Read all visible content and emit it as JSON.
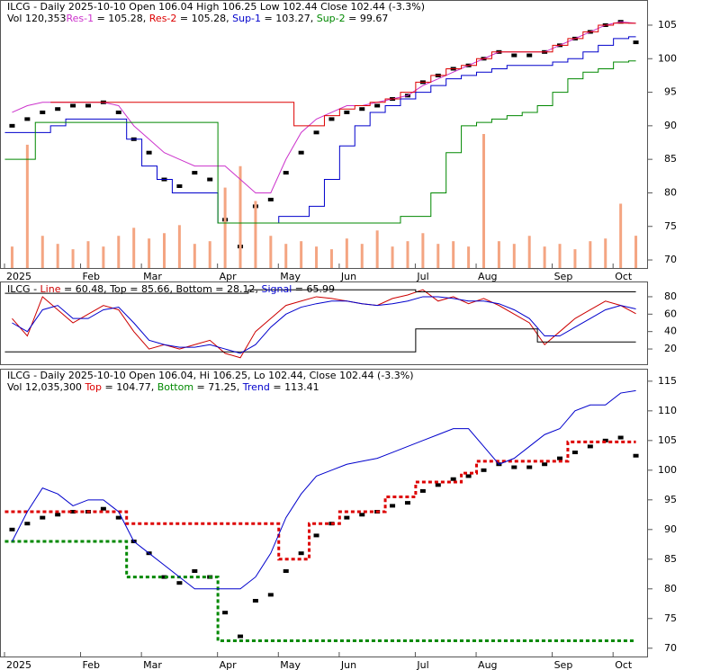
{
  "chart_data": [
    {
      "type": "stock",
      "subtitle": "Vol 120,353",
      "xlim": [
        -0.5,
        41.5
      ],
      "xticks": [
        {
          "value": -0.5,
          "label": "2025"
        },
        {
          "value": 4.5,
          "label": "Feb"
        },
        {
          "value": 8.5,
          "label": "Mar"
        },
        {
          "value": 13.5,
          "label": "Apr"
        },
        {
          "value": 17.5,
          "label": "May"
        },
        {
          "value": 21.5,
          "label": "Jun"
        },
        {
          "value": 26.5,
          "label": "Jul"
        },
        {
          "value": 30.5,
          "label": "Aug"
        },
        {
          "value": 35.5,
          "label": "Sep"
        },
        {
          "value": 39.5,
          "label": "Oct"
        }
      ],
      "ylim": [
        68.8,
        108.75
      ],
      "yticks": [
        70,
        75,
        80,
        85,
        90,
        95,
        100,
        105
      ],
      "y2lim": [
        0,
        1000000
      ],
      "series": [
        {
          "name": "ILCG",
          "legend": " - Daily 2025-10-10 Open 106.04  High 106.25  Low 102.44  Close 102.44 (-3.3%)",
          "color": "#000000",
          "style": "candle",
          "values": [
            90,
            91,
            92,
            92.5,
            93,
            93,
            93.5,
            92,
            88,
            86,
            82,
            81,
            83,
            82,
            76,
            72,
            78,
            79,
            83,
            86,
            89,
            91,
            92,
            92.5,
            93,
            94,
            94.5,
            96.5,
            97.5,
            98.5,
            99,
            100,
            101,
            100.5,
            100.5,
            101,
            102,
            103,
            104,
            105,
            105.5,
            102.44
          ]
        },
        {
          "color": "#f4a582",
          "style": "bar",
          "axis": "y2",
          "values": [
            80000,
            460000,
            120000,
            90000,
            70000,
            100000,
            80000,
            120000,
            150000,
            110000,
            130000,
            160000,
            90000,
            100000,
            300000,
            380000,
            250000,
            120000,
            90000,
            100000,
            80000,
            70000,
            110000,
            90000,
            140000,
            80000,
            100000,
            130000,
            90000,
            100000,
            80000,
            500000,
            100000,
            90000,
            120000,
            80000,
            90000,
            70000,
            100000,
            110000,
            240000,
            120353
          ]
        },
        {
          "name": "Res-1",
          "legend": " = 105.28, ",
          "color": "#cc33cc",
          "style": "line",
          "values": [
            92,
            93,
            93.5,
            93.5,
            93.5,
            93.5,
            93.5,
            93,
            90,
            88,
            86,
            85,
            84,
            84,
            84,
            82,
            80,
            80,
            85,
            89,
            91,
            92,
            93,
            93,
            93.5,
            94,
            94.5,
            96,
            97,
            98,
            99,
            100,
            101,
            101,
            101,
            101,
            102,
            103,
            104,
            105,
            105.5,
            105.28
          ]
        },
        {
          "name": "Res-2",
          "legend": " = 105.28, ",
          "color": "#dd0000",
          "style": "step",
          "values": [
            null,
            null,
            null,
            93.5,
            93.5,
            93.5,
            93.5,
            93.5,
            93.5,
            93.5,
            93.5,
            93.5,
            93.5,
            93.5,
            93.5,
            93.5,
            93.5,
            93.5,
            93.5,
            90,
            90,
            91.5,
            92.5,
            93,
            93.5,
            94,
            95,
            96.5,
            97.5,
            98.5,
            99,
            100,
            101,
            101,
            101,
            101,
            102,
            103,
            104,
            105,
            105.3,
            105.28
          ]
        },
        {
          "name": "Sup-1",
          "legend": " = 103.27, ",
          "color": "#0000cc",
          "style": "step",
          "values": [
            89,
            89,
            89,
            90,
            91,
            91,
            91,
            91,
            88,
            84,
            82,
            80,
            80,
            80,
            75.5,
            75.5,
            75.5,
            75.5,
            76.5,
            76.5,
            78,
            82,
            87,
            90,
            92,
            93,
            94,
            95,
            96,
            97,
            97.5,
            98,
            98.5,
            99,
            99,
            99,
            99.5,
            100,
            101,
            102,
            103,
            103.27
          ]
        },
        {
          "name": "Sup-2",
          "legend": " = 99.67",
          "color": "#008800",
          "style": "step",
          "values": [
            85,
            85,
            90.5,
            90.5,
            90.5,
            90.5,
            90.5,
            90.5,
            90.5,
            90.5,
            90.5,
            90.5,
            90.5,
            90.5,
            75.5,
            75.5,
            75.5,
            75.5,
            75.5,
            75.5,
            75.5,
            75.5,
            75.5,
            75.5,
            75.5,
            75.5,
            76.5,
            76.5,
            80,
            86,
            90,
            90.5,
            91,
            91.5,
            92,
            93,
            95,
            97,
            98,
            98.5,
            99.5,
            99.67
          ]
        }
      ]
    },
    {
      "type": "stock",
      "prefix": "ILCG - ",
      "xlim": [
        -0.5,
        41.5
      ],
      "ylim": [
        2.5,
        97.5
      ],
      "yticks": [
        20,
        40,
        60,
        80
      ],
      "series": [
        {
          "name": "Line",
          "legend": " = 60.48, ",
          "color": "#cc0000",
          "style": "line",
          "values": [
            55,
            35,
            80,
            65,
            50,
            60,
            70,
            65,
            40,
            20,
            25,
            20,
            25,
            30,
            15,
            10,
            40,
            55,
            70,
            75,
            80,
            78,
            75,
            72,
            70,
            78,
            82,
            88,
            75,
            80,
            72,
            78,
            70,
            60,
            50,
            25,
            40,
            55,
            65,
            75,
            70,
            60.48
          ]
        },
        {
          "name": "Top",
          "legend": " = 85.66, ",
          "color": "#000000",
          "style": "step",
          "values": [
            84,
            84,
            84,
            84,
            84,
            84,
            84,
            84,
            84,
            84,
            84,
            84,
            84,
            84,
            84,
            84,
            88,
            88,
            88,
            88,
            88,
            88,
            88,
            88,
            88,
            88,
            88,
            85.66,
            85.66,
            85.66,
            85.66,
            85.66,
            85.66,
            85.66,
            85.66,
            85.66,
            85.66,
            85.66,
            85.66,
            85.66,
            85.66,
            85.66
          ]
        },
        {
          "name": "Bottom",
          "legend": " = 28.12, ",
          "color": "#000000",
          "style": "step",
          "values": [
            16.7,
            16.7,
            16.7,
            16.7,
            16.7,
            16.7,
            16.7,
            16.7,
            16.7,
            16.7,
            16.7,
            16.7,
            16.7,
            16.7,
            16.7,
            16.7,
            16.7,
            16.7,
            16.7,
            16.7,
            16.7,
            16.7,
            16.7,
            16.7,
            16.7,
            16.7,
            16.7,
            43,
            43,
            43,
            43,
            43,
            43,
            43,
            43,
            28.12,
            28.12,
            28.12,
            28.12,
            28.12,
            28.12,
            28.12
          ]
        },
        {
          "name": "Signal",
          "legend": " = 65.99",
          "color": "#0000cc",
          "style": "line",
          "values": [
            50,
            40,
            65,
            70,
            55,
            55,
            65,
            68,
            50,
            30,
            25,
            22,
            22,
            25,
            20,
            15,
            25,
            45,
            60,
            68,
            72,
            75,
            75,
            72,
            70,
            72,
            75,
            80,
            80,
            78,
            75,
            75,
            72,
            65,
            55,
            35,
            35,
            45,
            55,
            65,
            70,
            65.99
          ]
        }
      ]
    },
    {
      "type": "stock",
      "subtitle": "Vol 12,035,300  ",
      "xlim": [
        -0.5,
        41.5
      ],
      "xticks": [
        {
          "value": -0.5,
          "label": "2025"
        },
        {
          "value": 4.5,
          "label": "Feb"
        },
        {
          "value": 8.5,
          "label": "Mar"
        },
        {
          "value": 13.5,
          "label": "Apr"
        },
        {
          "value": 17.5,
          "label": "May"
        },
        {
          "value": 21.5,
          "label": "Jun"
        },
        {
          "value": 26.5,
          "label": "Jul"
        },
        {
          "value": 30.5,
          "label": "Aug"
        },
        {
          "value": 35.5,
          "label": "Sep"
        },
        {
          "value": 39.5,
          "label": "Oct"
        }
      ],
      "ylim": [
        68.6,
        117.1
      ],
      "yticks": [
        70,
        75,
        80,
        85,
        90,
        95,
        100,
        105,
        110,
        115
      ],
      "series": [
        {
          "name": "ILCG",
          "legend": " - Daily 2025-10-10 Open 106.04, Hi 106.25, Lo 102.44, Close 102.44 (-3.3%)",
          "color": "#000000",
          "style": "candle",
          "values": [
            90,
            91,
            92,
            92.5,
            93,
            93,
            93.5,
            92,
            88,
            86,
            82,
            81,
            83,
            82,
            76,
            72,
            78,
            79,
            83,
            86,
            89,
            91,
            92,
            92.5,
            93,
            94,
            94.5,
            96.5,
            97.5,
            98.5,
            99,
            100,
            101,
            100.5,
            100.5,
            101,
            102,
            103,
            104,
            105,
            105.5,
            102.44
          ]
        },
        {
          "name": "Top",
          "legend": " = 104.77, ",
          "color": "#dd0000",
          "style": "dashed",
          "values": [
            93,
            93,
            93,
            93,
            93,
            93,
            93,
            93,
            91,
            91,
            91,
            91,
            91,
            91,
            91,
            91,
            91,
            91,
            85,
            85,
            91,
            91,
            93,
            93,
            93,
            95.5,
            95.5,
            98,
            98,
            98,
            99.5,
            101.5,
            101.5,
            101.5,
            101.5,
            101.5,
            101.5,
            104.77,
            104.77,
            104.77,
            104.77,
            104.77
          ]
        },
        {
          "name": "Bottom",
          "legend": " = 71.25, ",
          "color": "#008800",
          "style": "dashed",
          "values": [
            88,
            88,
            88,
            88,
            88,
            88,
            88,
            88,
            82,
            82,
            82,
            82,
            82,
            82,
            71.25,
            71.25,
            71.25,
            71.25,
            71.25,
            71.25,
            71.25,
            71.25,
            71.25,
            71.25,
            71.25,
            71.25,
            71.25,
            71.25,
            71.25,
            71.25,
            71.25,
            71.25,
            71.25,
            71.25,
            71.25,
            71.25,
            71.25,
            71.25,
            71.25,
            71.25,
            71.25,
            71.25
          ]
        },
        {
          "name": "Trend",
          "legend": " = 113.41",
          "color": "#0000cc",
          "style": "line",
          "values": [
            88,
            93,
            97,
            96,
            94,
            95,
            95,
            93,
            88,
            86,
            84,
            82,
            80,
            80,
            80,
            80,
            82,
            86,
            92,
            96,
            99,
            100,
            101,
            101.5,
            102,
            103,
            104,
            105,
            106,
            107,
            107,
            104,
            101,
            102,
            104,
            106,
            107,
            110,
            111,
            111,
            113,
            113.41
          ]
        }
      ]
    }
  ]
}
